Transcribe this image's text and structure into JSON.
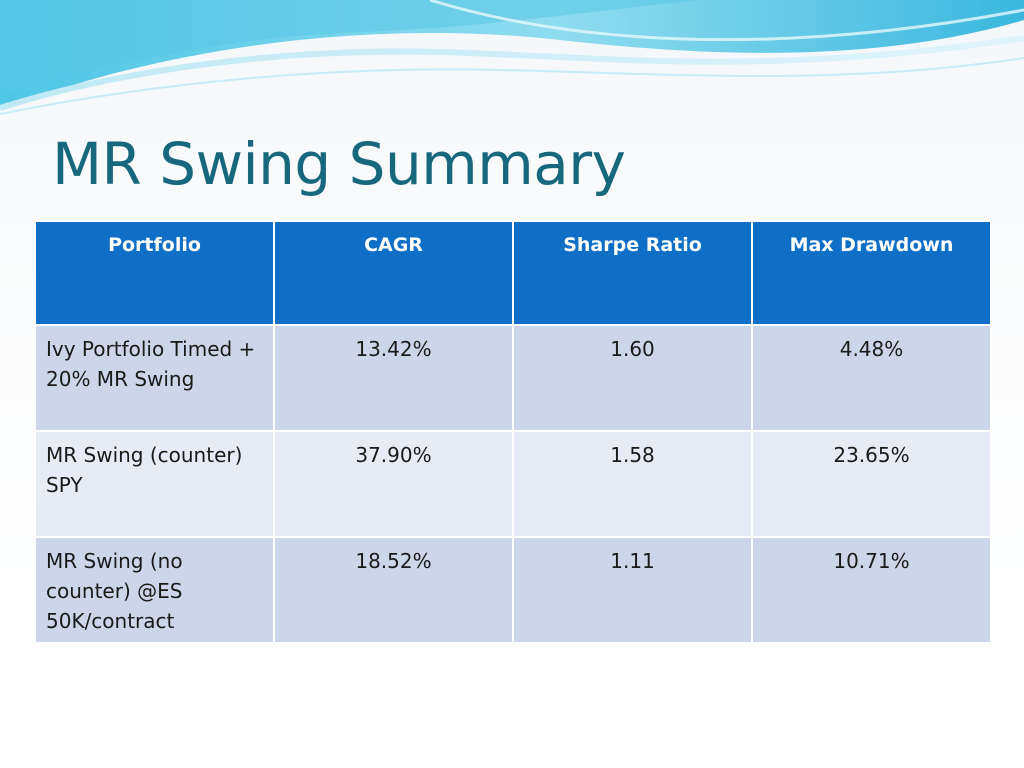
{
  "slide": {
    "title": "MR Swing Summary"
  },
  "table": {
    "headers": [
      "Portfolio",
      "CAGR",
      "Sharpe Ratio",
      "Max Drawdown"
    ],
    "rows": [
      {
        "portfolio": "Ivy Portfolio Timed + 20% MR Swing",
        "cagr": "13.42%",
        "sharpe": "1.60",
        "max_drawdown": "4.48%"
      },
      {
        "portfolio": "MR Swing (counter) SPY",
        "cagr": "37.90%",
        "sharpe": "1.58",
        "max_drawdown": "23.65%"
      },
      {
        "portfolio": "MR Swing (no counter) @ES 50K/contract",
        "cagr": "18.52%",
        "sharpe": "1.11",
        "max_drawdown": "10.71%"
      }
    ]
  },
  "colors": {
    "title": "#17687d",
    "header_bg": "#0f6fc6",
    "row_dark": "#ccd5e9",
    "row_light": "#e7ebf5",
    "wave": "#29b0d6"
  }
}
